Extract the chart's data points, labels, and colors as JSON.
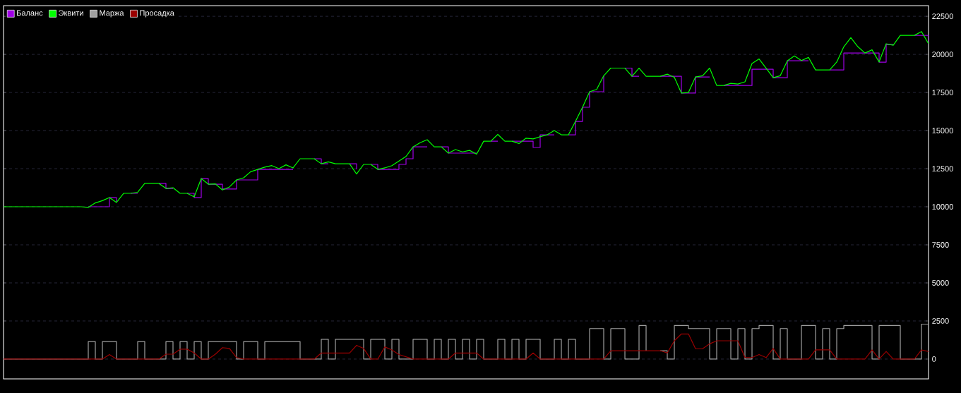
{
  "chart_data": {
    "type": "line",
    "categories": [
      null,
      null,
      null,
      null,
      null,
      null,
      null,
      null,
      null,
      null,
      null,
      null,
      null,
      null,
      null,
      null,
      null,
      null,
      null,
      null,
      null,
      null,
      null,
      null,
      null,
      null,
      null,
      null,
      null,
      null,
      null,
      null,
      null,
      null,
      null,
      null,
      null,
      null,
      null,
      null,
      null,
      null,
      null,
      null,
      null,
      null,
      null,
      null,
      null,
      null,
      null,
      null,
      null,
      null,
      null,
      null,
      null,
      null,
      null,
      null,
      null,
      null,
      null,
      null,
      null,
      null,
      null,
      null,
      null,
      null,
      null,
      null,
      null,
      null,
      null,
      null,
      null,
      null,
      null,
      null,
      null,
      null,
      null,
      null,
      null,
      null,
      null,
      null,
      null,
      null,
      null,
      null,
      null,
      null,
      null,
      null,
      null,
      null,
      null,
      null,
      null,
      null,
      null,
      null,
      null,
      null,
      null,
      null,
      null,
      null,
      null,
      null,
      null,
      null,
      null,
      null,
      null,
      null,
      null,
      null,
      null,
      null,
      null,
      null,
      null,
      null,
      null,
      null,
      null,
      null,
      null,
      null
    ],
    "series": [
      {
        "name": "Баланс",
        "type": "step",
        "color": "#a000e6",
        "values": [
          null,
          null,
          null,
          null,
          null,
          null,
          null,
          null,
          null,
          null,
          null,
          null,
          10000,
          10000,
          10000,
          10600,
          10280,
          null,
          10880,
          10880,
          null,
          null,
          11530,
          11200,
          11200,
          null,
          10880,
          10600,
          11850,
          11480,
          11480,
          11160,
          11160,
          11760,
          11760,
          11760,
          12450,
          12450,
          12450,
          12450,
          12450,
          12450,
          null,
          null,
          13150,
          12820,
          12820,
          null,
          null,
          12820,
          12450,
          null,
          12780,
          12450,
          12450,
          12450,
          12780,
          13150,
          13930,
          13930,
          13930,
          null,
          13930,
          13520,
          13520,
          13520,
          13520,
          13520,
          null,
          14300,
          14300,
          null,
          14300,
          14300,
          14300,
          13890,
          14720,
          14720,
          14720,
          null,
          14720,
          15600,
          16530,
          17550,
          17550,
          18600,
          null,
          null,
          19100,
          18560,
          18560,
          null,
          null,
          18560,
          18560,
          18560,
          17460,
          17460,
          18520,
          18520,
          18520,
          null,
          17960,
          17960,
          17960,
          17960,
          19030,
          19030,
          19030,
          18470,
          18470,
          19580,
          19580,
          19580,
          19580,
          null,
          null,
          18980,
          18980,
          20090,
          20090,
          20090,
          20090,
          20090,
          19490,
          20650,
          20650,
          null,
          null,
          21250,
          21250,
          20650
        ]
      },
      {
        "name": "Эквити",
        "type": "line",
        "color": "#00ff00",
        "values": [
          10000,
          10000,
          10000,
          10000,
          10000,
          10000,
          10000,
          10000,
          10000,
          10000,
          10000,
          10000,
          9950,
          10250,
          10400,
          10600,
          10280,
          10880,
          10880,
          10950,
          11530,
          11530,
          11530,
          11200,
          11250,
          10880,
          10880,
          10650,
          11850,
          11480,
          11500,
          11100,
          11300,
          11760,
          11900,
          12300,
          12450,
          12600,
          12700,
          12500,
          12750,
          12550,
          13150,
          13150,
          13150,
          12820,
          12950,
          12820,
          12820,
          12820,
          12150,
          12780,
          12780,
          12450,
          12550,
          12700,
          13000,
          13300,
          13930,
          14200,
          14400,
          13930,
          13930,
          13520,
          13750,
          13600,
          13700,
          13450,
          14300,
          14300,
          14750,
          14300,
          14300,
          14150,
          14500,
          14450,
          14600,
          14720,
          15000,
          14720,
          14720,
          15600,
          16530,
          17550,
          17700,
          18600,
          19100,
          19100,
          19100,
          18560,
          19100,
          18560,
          18560,
          18560,
          18700,
          18500,
          17460,
          17500,
          18520,
          18600,
          19100,
          17960,
          17960,
          18100,
          18050,
          18200,
          19400,
          19700,
          19100,
          18470,
          18600,
          19580,
          19900,
          19600,
          19800,
          18980,
          18980,
          18980,
          19500,
          20500,
          21100,
          20500,
          20090,
          20300,
          19500,
          20700,
          20600,
          21250,
          21250,
          21250,
          21500,
          20700
        ]
      },
      {
        "name": "Маржа",
        "type": "step",
        "color": "#a0a0a0",
        "values": [
          0,
          0,
          0,
          0,
          0,
          0,
          0,
          0,
          0,
          0,
          0,
          0,
          1150,
          0,
          1150,
          1150,
          0,
          0,
          0,
          1150,
          0,
          0,
          0,
          1150,
          0,
          1150,
          0,
          1150,
          0,
          1150,
          1150,
          1150,
          1150,
          0,
          1150,
          1150,
          0,
          1150,
          1150,
          1150,
          1150,
          1150,
          0,
          0,
          0,
          1300,
          0,
          1300,
          1300,
          1300,
          1300,
          0,
          1300,
          1300,
          0,
          1300,
          0,
          0,
          1300,
          1300,
          0,
          1300,
          0,
          1300,
          0,
          1300,
          0,
          1300,
          0,
          0,
          1300,
          0,
          1300,
          0,
          1300,
          1300,
          0,
          0,
          1300,
          0,
          1300,
          0,
          0,
          2000,
          2000,
          0,
          2000,
          2000,
          0,
          0,
          2200,
          550,
          null,
          550,
          0,
          2200,
          2200,
          2000,
          2000,
          2000,
          0,
          2000,
          2000,
          0,
          2000,
          0,
          2000,
          2200,
          2200,
          0,
          2000,
          0,
          0,
          2200,
          2200,
          0,
          2000,
          0,
          2000,
          2200,
          2200,
          2200,
          2200,
          0,
          2200,
          2200,
          2200,
          0,
          0,
          0,
          2300,
          2300
        ]
      },
      {
        "name": "Просадка",
        "type": "line",
        "color": "#9a0000",
        "values": [
          0,
          0,
          0,
          0,
          0,
          0,
          0,
          0,
          0,
          0,
          0,
          0,
          0,
          0,
          0,
          300,
          0,
          0,
          0,
          0,
          0,
          0,
          0,
          320,
          320,
          650,
          650,
          400,
          0,
          0,
          320,
          750,
          700,
          100,
          0,
          0,
          0,
          0,
          0,
          0,
          0,
          0,
          0,
          0,
          0,
          400,
          400,
          400,
          400,
          400,
          900,
          700,
          0,
          0,
          800,
          600,
          300,
          150,
          0,
          0,
          0,
          0,
          0,
          0,
          400,
          400,
          400,
          400,
          0,
          0,
          0,
          0,
          0,
          0,
          0,
          400,
          0,
          0,
          0,
          0,
          0,
          0,
          0,
          0,
          0,
          0,
          550,
          550,
          550,
          550,
          550,
          550,
          550,
          550,
          400,
          1200,
          1650,
          1650,
          680,
          680,
          1000,
          1200,
          1200,
          1200,
          1200,
          100,
          100,
          300,
          100,
          700,
          0,
          0,
          0,
          0,
          0,
          600,
          600,
          600,
          0,
          0,
          0,
          0,
          0,
          600,
          0,
          500,
          0,
          0,
          0,
          0,
          600,
          500
        ]
      }
    ],
    "ylim": [
      -1300,
      23200
    ],
    "yticks": [
      0,
      2500,
      5000,
      7500,
      10000,
      12500,
      15000,
      17500,
      20000,
      22500
    ],
    "tick_labels": "y",
    "grid": "y",
    "legend": "top left"
  }
}
